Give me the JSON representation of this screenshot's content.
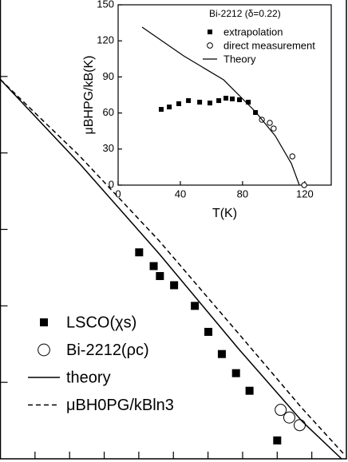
{
  "chart_data": [
    {
      "type": "scatter",
      "xlim": [
        0,
        10
      ],
      "ylim": [
        0,
        6
      ],
      "xticks": [
        1,
        2,
        3,
        4,
        5,
        6,
        7,
        8,
        9
      ],
      "yticks": [
        1,
        2,
        3,
        4,
        5
      ],
      "tick_labels": false,
      "legend": "lower left",
      "series": [
        {
          "name": "LSCO(χs)",
          "marker": "square",
          "color": "#000000",
          "x": [
            4.01,
            4.43,
            4.61,
            5.02,
            5.62,
            6.01,
            6.4,
            6.81,
            7.2,
            8.0
          ],
          "values": [
            2.7,
            2.52,
            2.39,
            2.27,
            2.0,
            1.66,
            1.37,
            1.12,
            0.89,
            0.24
          ]
        },
        {
          "name": "Bi-2212(ρc)",
          "marker": "circle",
          "color": "#000000",
          "x": [
            8.1,
            8.35,
            8.65
          ],
          "values": [
            0.64,
            0.54,
            0.44
          ]
        },
        {
          "name": "theory",
          "marker": "line",
          "color": "#000000",
          "x": [
            0,
            2.29,
            4.59,
            6.88,
            8.72,
            9.86
          ],
          "values": [
            4.96,
            3.86,
            2.68,
            1.44,
            0.49,
            0
          ]
        },
        {
          "name": "μBH0PG/kBln3",
          "marker": "dashed",
          "color": "#000000",
          "x": [
            0,
            2.29,
            4.59,
            6.88,
            8.72,
            9.95
          ],
          "values": [
            4.96,
            3.96,
            2.85,
            1.64,
            0.66,
            0.05
          ]
        }
      ]
    },
    {
      "type": "scatter",
      "xlabel": "T(K)",
      "ylabel": "μBHPG/kB(K)",
      "xlim": [
        0,
        137
      ],
      "ylim": [
        0,
        150
      ],
      "xticks": [
        0,
        40,
        80,
        120
      ],
      "yticks": [
        0,
        30,
        60,
        90,
        120,
        150
      ],
      "legend": "upper right",
      "legend_title": "Bi-2212 (δ=0.22)",
      "series": [
        {
          "name": "extrapolation",
          "marker": "square",
          "color": "#000000",
          "x": [
            27.7,
            32.9,
            39,
            45.2,
            52.4,
            59,
            64.7,
            69.3,
            73.4,
            78,
            83.7,
            88.3
          ],
          "values": [
            63,
            65,
            67.7,
            70.3,
            69,
            68.3,
            70.3,
            72.3,
            71.7,
            71,
            69,
            60.4
          ]
        },
        {
          "name": "direct measurement",
          "marker": "circle",
          "color": "#000000",
          "x": [
            92.4,
            97.5,
            100,
            112,
            119.6
          ],
          "values": [
            54.4,
            51.8,
            47.1,
            23.9,
            0
          ]
        },
        {
          "name": "Theory",
          "marker": "line",
          "color": "#000000",
          "x": [
            15.4,
            42.1,
            67.8,
            88.3,
            101,
            111.4,
            116.5
          ],
          "values": [
            131.4,
            107.5,
            87.6,
            61,
            41,
            17.9,
            0
          ]
        }
      ]
    }
  ]
}
